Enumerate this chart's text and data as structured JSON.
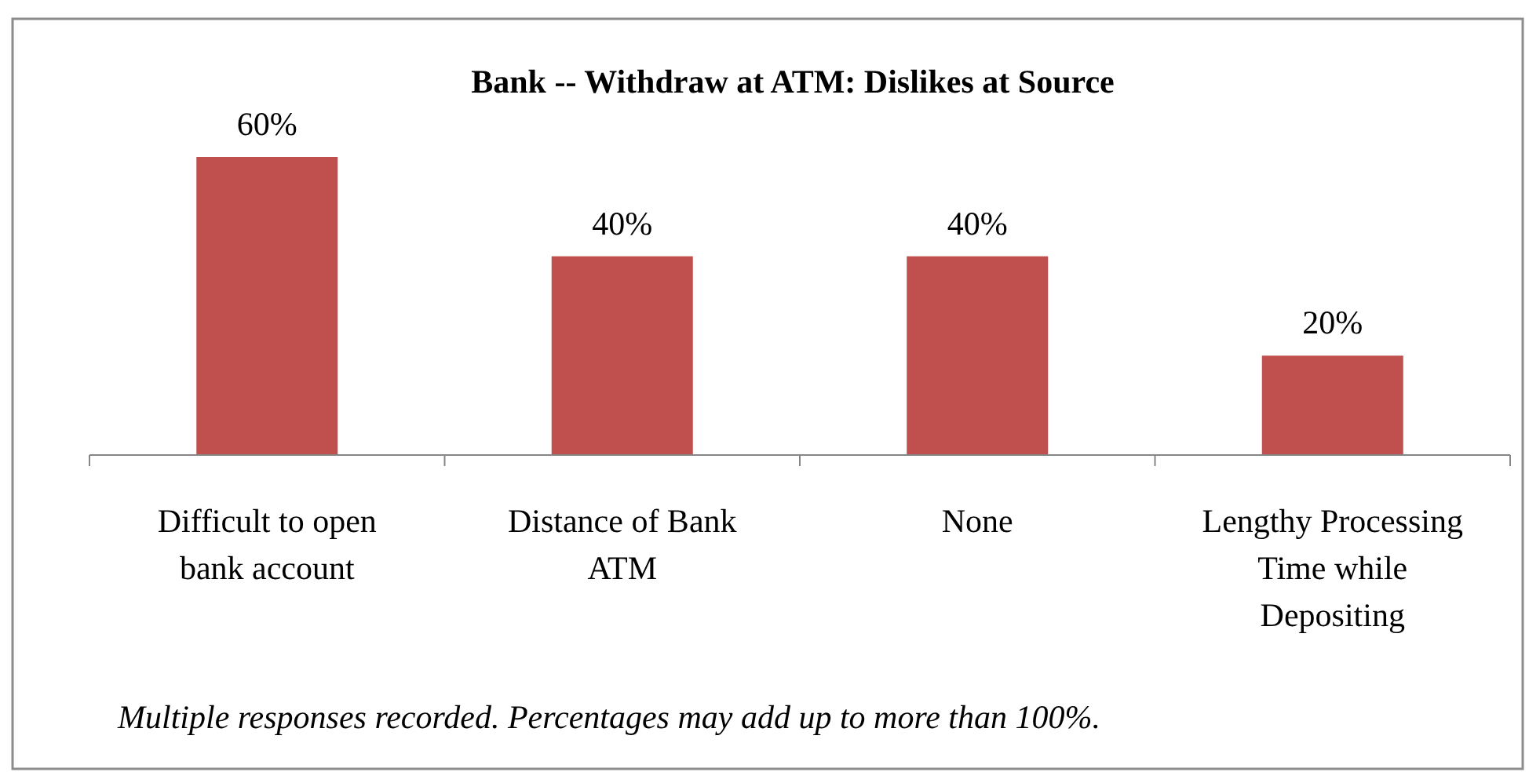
{
  "chart_data": {
    "type": "bar",
    "title": "Bank -- Withdraw at ATM: Dislikes at  Source",
    "categories": [
      "Difficult to open bank account",
      "Distance of Bank ATM",
      "None",
      "Lengthy Processing Time while Depositing"
    ],
    "values": [
      60,
      40,
      40,
      20
    ],
    "color": "#c0504d",
    "value_labels": [
      "60%",
      "40%",
      "40%",
      "20%"
    ],
    "annotations": [
      "Multiple responses recorded. Percentages may add up to more than 100%."
    ]
  }
}
